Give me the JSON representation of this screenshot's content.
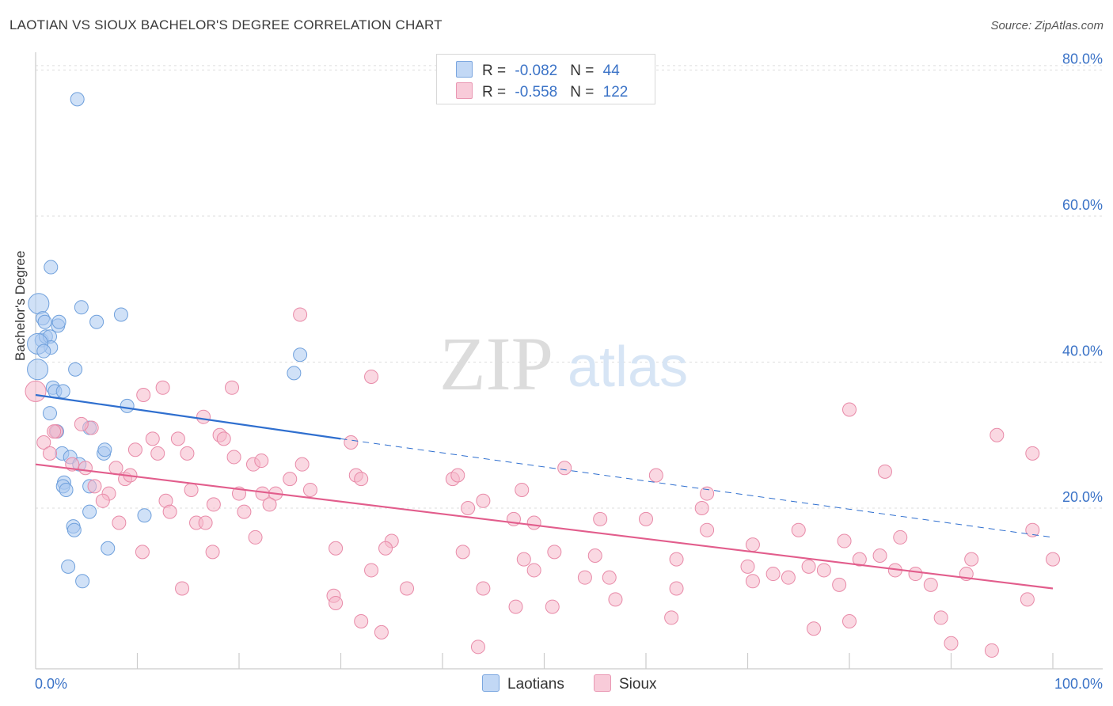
{
  "header": {
    "title": "LAOTIAN VS SIOUX BACHELOR'S DEGREE CORRELATION CHART",
    "source": "Source: ZipAtlas.com"
  },
  "watermark": {
    "zip": "ZIP",
    "atlas": "atlas"
  },
  "legend": {
    "rows": [
      {
        "r_label": "R = ",
        "r_value": "-0.082",
        "n_label": "N = ",
        "n_value": "44",
        "color": "#a9c8f0"
      },
      {
        "r_label": "R = ",
        "r_value": "-0.558",
        "n_label": "N = ",
        "n_value": "122",
        "color": "#f5b8cb"
      }
    ]
  },
  "bottom_legend": {
    "laotians": "Laotians",
    "sioux": "Sioux"
  },
  "chart_data": {
    "type": "scatter",
    "title": "LAOTIAN VS SIOUX BACHELOR'S DEGREE CORRELATION CHART",
    "xlabel": "",
    "ylabel": "Bachelor's Degree",
    "xlim": [
      0,
      100
    ],
    "ylim": [
      -2,
      82
    ],
    "x_tick_labels": [
      "0.0%",
      "100.0%"
    ],
    "y_ticks": [
      20,
      40,
      60,
      80
    ],
    "y_tick_labels": [
      "20.0%",
      "40.0%",
      "60.0%",
      "80.0%"
    ],
    "grid": true,
    "series": [
      {
        "name": "Laotians",
        "color": "#a9c8f0",
        "stroke": "#6fa0dc",
        "trend": {
          "x0": 0,
          "y0": 35.5,
          "x1": 30,
          "y1": 29.5,
          "dash_to_x": 100,
          "dash_to_y": 16.0,
          "color": "#2f6fcf"
        },
        "points": [
          [
            4.1,
            76
          ],
          [
            1.5,
            53
          ],
          [
            0.3,
            48
          ],
          [
            0.7,
            46
          ],
          [
            0.9,
            45.5
          ],
          [
            2.2,
            45
          ],
          [
            2.3,
            45.5
          ],
          [
            6.0,
            45.5
          ],
          [
            8.4,
            46.5
          ],
          [
            4.5,
            47.5
          ],
          [
            0.6,
            43
          ],
          [
            1.0,
            43.5
          ],
          [
            1.4,
            43.5
          ],
          [
            1.5,
            42
          ],
          [
            0.2,
            42.5
          ],
          [
            0.8,
            41.5
          ],
          [
            3.9,
            39
          ],
          [
            0.2,
            39
          ],
          [
            25.4,
            38.5
          ],
          [
            26.0,
            41
          ],
          [
            1.7,
            36.5
          ],
          [
            1.9,
            36
          ],
          [
            2.7,
            36
          ],
          [
            1.4,
            33
          ],
          [
            9.0,
            34
          ],
          [
            2.1,
            30.5
          ],
          [
            5.3,
            31
          ],
          [
            2.6,
            27.5
          ],
          [
            3.4,
            27
          ],
          [
            4.3,
            26
          ],
          [
            6.7,
            27.5
          ],
          [
            6.8,
            28
          ],
          [
            2.8,
            23.5
          ],
          [
            2.7,
            23
          ],
          [
            3.0,
            22.5
          ],
          [
            5.3,
            23
          ],
          [
            5.3,
            19.5
          ],
          [
            10.7,
            19
          ],
          [
            3.7,
            17.5
          ],
          [
            3.8,
            17
          ],
          [
            7.1,
            14.5
          ],
          [
            3.2,
            12
          ],
          [
            4.6,
            10
          ]
        ]
      },
      {
        "name": "Sioux",
        "color": "#f5b8cb",
        "stroke": "#e88aa8",
        "trend": {
          "x0": 0,
          "y0": 26.0,
          "x1": 100,
          "y1": 9.0,
          "color": "#e25d8c"
        },
        "points": [
          [
            0.0,
            36.0
          ],
          [
            26.0,
            46.5
          ],
          [
            33.0,
            38
          ],
          [
            12.5,
            36.5
          ],
          [
            19.3,
            36.5
          ],
          [
            10.6,
            35.5
          ],
          [
            16.5,
            32.5
          ],
          [
            5.5,
            31
          ],
          [
            2.0,
            30.5
          ],
          [
            1.8,
            30.5
          ],
          [
            4.5,
            31.5
          ],
          [
            0.8,
            29
          ],
          [
            11.5,
            29.5
          ],
          [
            14.0,
            29.5
          ],
          [
            18.1,
            30
          ],
          [
            18.5,
            29.5
          ],
          [
            31.0,
            29
          ],
          [
            9.8,
            28
          ],
          [
            1.4,
            27.5
          ],
          [
            12.0,
            27.5
          ],
          [
            14.9,
            27.5
          ],
          [
            19.5,
            27
          ],
          [
            21.4,
            26
          ],
          [
            22.2,
            26.5
          ],
          [
            26.2,
            26
          ],
          [
            3.6,
            26
          ],
          [
            4.9,
            25.5
          ],
          [
            7.9,
            25.5
          ],
          [
            8.8,
            24
          ],
          [
            9.3,
            24.5
          ],
          [
            25.0,
            24
          ],
          [
            31.5,
            24.5
          ],
          [
            32.0,
            24
          ],
          [
            41.0,
            24
          ],
          [
            41.5,
            24.5
          ],
          [
            52.0,
            25.5
          ],
          [
            61.0,
            24.5
          ],
          [
            83.5,
            25
          ],
          [
            80.0,
            33.5
          ],
          [
            94.5,
            30
          ],
          [
            98.0,
            27.5
          ],
          [
            5.8,
            23
          ],
          [
            7.2,
            22
          ],
          [
            12.8,
            21
          ],
          [
            15.3,
            22.5
          ],
          [
            20.0,
            22
          ],
          [
            22.3,
            22
          ],
          [
            23.6,
            22
          ],
          [
            27.0,
            22.5
          ],
          [
            47.8,
            22.5
          ],
          [
            66.0,
            22
          ],
          [
            6.6,
            21
          ],
          [
            17.5,
            20.5
          ],
          [
            23.0,
            20.5
          ],
          [
            44.0,
            21
          ],
          [
            13.2,
            19.5
          ],
          [
            20.5,
            19.5
          ],
          [
            42.5,
            20
          ],
          [
            65.5,
            20
          ],
          [
            8.2,
            18
          ],
          [
            15.8,
            18
          ],
          [
            16.7,
            18
          ],
          [
            47.0,
            18.5
          ],
          [
            49.0,
            18
          ],
          [
            55.5,
            18.5
          ],
          [
            60.0,
            18.5
          ],
          [
            21.6,
            16
          ],
          [
            35.0,
            15.5
          ],
          [
            66.0,
            17
          ],
          [
            70.5,
            15
          ],
          [
            75.0,
            17
          ],
          [
            79.5,
            15.5
          ],
          [
            85.0,
            16
          ],
          [
            98.0,
            17
          ],
          [
            10.5,
            14
          ],
          [
            17.4,
            14
          ],
          [
            29.5,
            14.5
          ],
          [
            34.4,
            14.5
          ],
          [
            42.0,
            14
          ],
          [
            48.0,
            13
          ],
          [
            51.0,
            14
          ],
          [
            55.0,
            13.5
          ],
          [
            63.0,
            13
          ],
          [
            81.0,
            13
          ],
          [
            83.0,
            13.5
          ],
          [
            92.0,
            13
          ],
          [
            100.0,
            13
          ],
          [
            33.0,
            11.5
          ],
          [
            49.0,
            11.5
          ],
          [
            54.0,
            10.5
          ],
          [
            56.4,
            10.5
          ],
          [
            70.0,
            12
          ],
          [
            72.5,
            11
          ],
          [
            74.0,
            10.5
          ],
          [
            76.0,
            12
          ],
          [
            77.5,
            11.5
          ],
          [
            84.5,
            11.5
          ],
          [
            86.5,
            11
          ],
          [
            91.5,
            11
          ],
          [
            14.4,
            9
          ],
          [
            36.5,
            9
          ],
          [
            44.0,
            9
          ],
          [
            63.0,
            9
          ],
          [
            70.5,
            10
          ],
          [
            79.0,
            9.5
          ],
          [
            88.0,
            9.5
          ],
          [
            29.3,
            8
          ],
          [
            57.0,
            7.5
          ],
          [
            97.5,
            7.5
          ],
          [
            29.5,
            7
          ],
          [
            47.2,
            6.5
          ],
          [
            50.8,
            6.5
          ],
          [
            32.0,
            4.5
          ],
          [
            62.5,
            5
          ],
          [
            76.5,
            3.5
          ],
          [
            80.0,
            4.5
          ],
          [
            89.0,
            5
          ],
          [
            34.0,
            3
          ],
          [
            43.5,
            1
          ],
          [
            90.0,
            1.5
          ],
          [
            94.0,
            0.5
          ]
        ]
      }
    ]
  }
}
